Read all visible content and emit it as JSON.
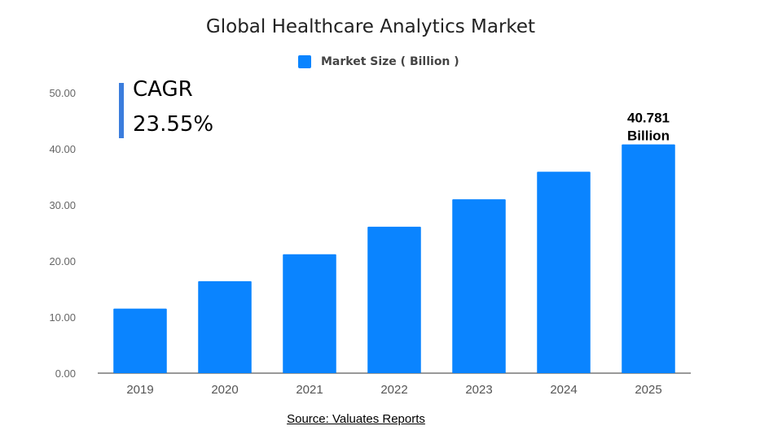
{
  "chart_data": {
    "type": "bar",
    "title": "Global Healthcare Analytics Market",
    "categories": [
      "2019",
      "2020",
      "2021",
      "2022",
      "2023",
      "2024",
      "2025"
    ],
    "series": [
      {
        "name": "Market Size ( Billion )",
        "values": [
          11.5,
          16.4,
          21.2,
          26.1,
          31.0,
          35.9,
          40.781
        ],
        "color": "#0a84ff"
      }
    ],
    "ylim": [
      0,
      50
    ],
    "yticks": [
      "0.00",
      "10.00",
      "20.00",
      "30.00",
      "40.00",
      "50.00"
    ],
    "grid": false,
    "legend": "top",
    "annotations": {
      "last_bar_label_line1": "40.781",
      "last_bar_label_line2": "Billion"
    }
  },
  "cagr": {
    "label": "CAGR",
    "value": "23.55%"
  },
  "source": "Source: Valuates Reports"
}
